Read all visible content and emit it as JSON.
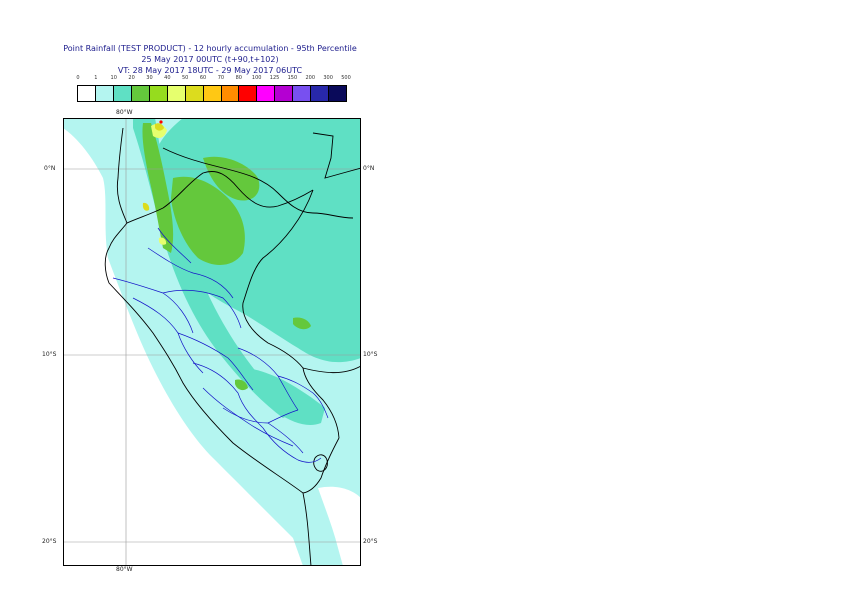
{
  "titles": {
    "line1": "Point Rainfall (TEST PRODUCT) - 12 hourly accumulation - 95th Percentile",
    "line2": "25 May 2017 00UTC (t+90,t+102)",
    "line3": "VT: 28 May 2017 18UTC - 29 May 2017 06UTC"
  },
  "legend": {
    "labels": [
      "0",
      "1",
      "10",
      "20",
      "30",
      "40",
      "50",
      "60",
      "70",
      "80",
      "100",
      "125",
      "150",
      "200",
      "300",
      "500"
    ],
    "colors": [
      "#ffffff",
      "#b4f5f0",
      "#5fe0c4",
      "#64c83c",
      "#96dc1e",
      "#e6ff6e",
      "#dcdc1e",
      "#ffc814",
      "#ff8c00",
      "#ff0000",
      "#ff00ff",
      "#b400d2",
      "#7850f0",
      "#2828aa",
      "#0a0a5a"
    ]
  },
  "axes": {
    "top_lon": "80°W",
    "bottom_lon": "80°W",
    "lat0": "0°N",
    "lat10": "10°S",
    "lat20": "20°S"
  }
}
